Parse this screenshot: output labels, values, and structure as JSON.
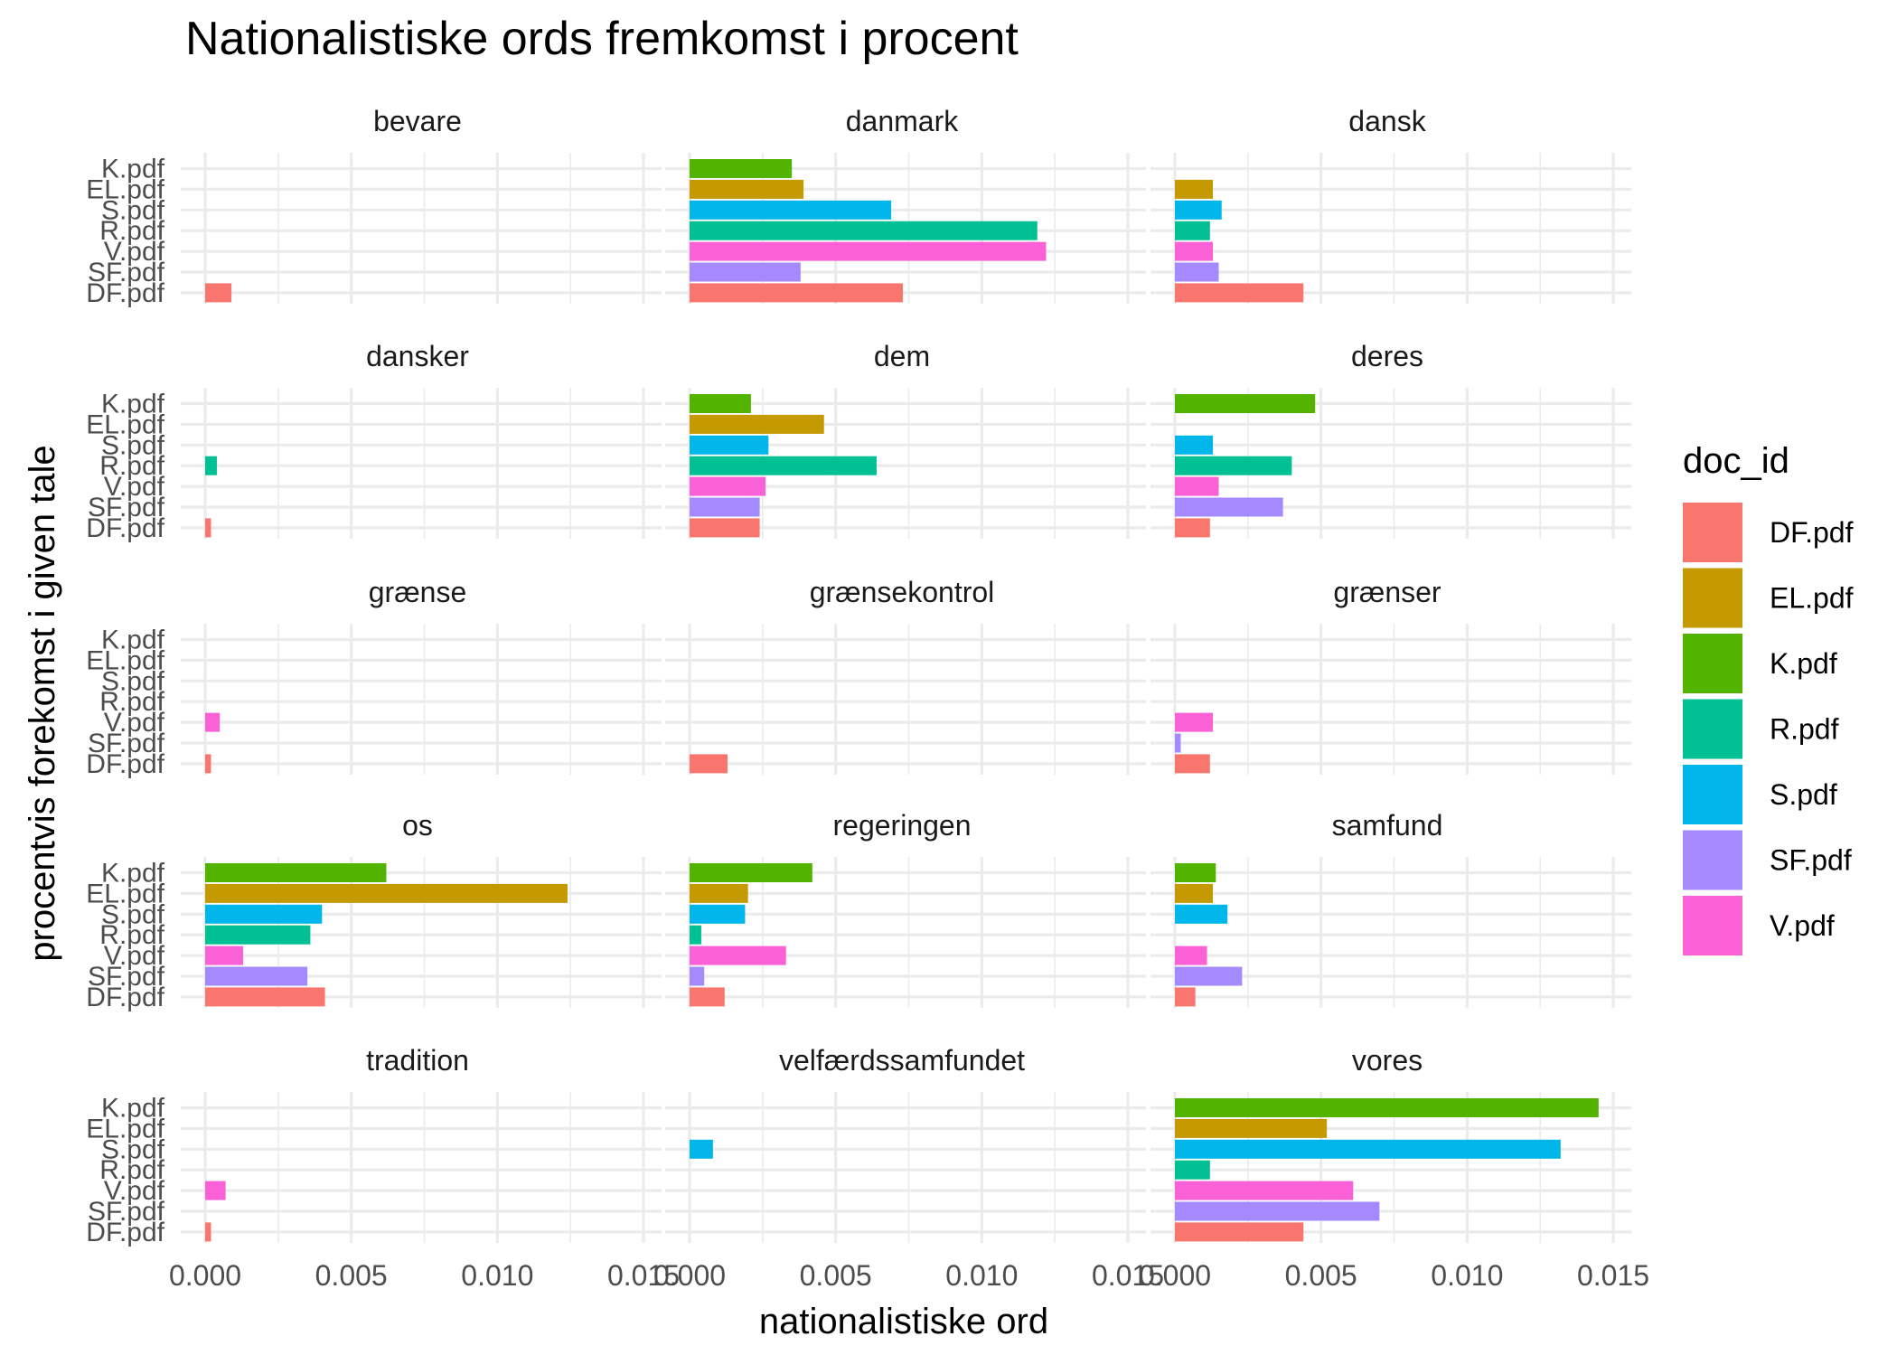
{
  "chart_data": {
    "type": "bar",
    "orientation": "horizontal",
    "facet": "wrap",
    "title": "Nationalistiske ords fremkomst i procent",
    "xlabel": "nationalistiske ord",
    "ylabel": "procentvis forekomst i given tale",
    "xlim": [
      0,
      0.015
    ],
    "x_ticks": [
      0.0,
      0.005,
      0.01,
      0.015
    ],
    "x_tick_labels": [
      "0.000",
      "0.005",
      "0.010",
      "0.015"
    ],
    "grid": true,
    "legend": {
      "title": "doc_id",
      "position": "right"
    },
    "categories": [
      "K.pdf",
      "EL.pdf",
      "S.pdf",
      "R.pdf",
      "V.pdf",
      "SF.pdf",
      "DF.pdf"
    ],
    "legend_order": [
      "DF.pdf",
      "EL.pdf",
      "K.pdf",
      "R.pdf",
      "S.pdf",
      "SF.pdf",
      "V.pdf"
    ],
    "colors": {
      "DF.pdf": "#F8766D",
      "EL.pdf": "#C49A00",
      "K.pdf": "#53B400",
      "R.pdf": "#00C094",
      "S.pdf": "#00B6EB",
      "SF.pdf": "#A58AFF",
      "V.pdf": "#FB61D7"
    },
    "facets": [
      {
        "name": "bevare",
        "values": {
          "DF.pdf": 0.0009
        }
      },
      {
        "name": "danmark",
        "values": {
          "K.pdf": 0.0035,
          "EL.pdf": 0.0039,
          "S.pdf": 0.0069,
          "R.pdf": 0.0119,
          "V.pdf": 0.0122,
          "SF.pdf": 0.0038,
          "DF.pdf": 0.0073
        }
      },
      {
        "name": "dansk",
        "values": {
          "EL.pdf": 0.0013,
          "S.pdf": 0.0016,
          "R.pdf": 0.0012,
          "V.pdf": 0.0013,
          "SF.pdf": 0.0015,
          "DF.pdf": 0.0044
        }
      },
      {
        "name": "dansker",
        "values": {
          "R.pdf": 0.0004,
          "DF.pdf": 0.0002
        }
      },
      {
        "name": "dem",
        "values": {
          "K.pdf": 0.0021,
          "EL.pdf": 0.0046,
          "S.pdf": 0.0027,
          "R.pdf": 0.0064,
          "V.pdf": 0.0026,
          "SF.pdf": 0.0024,
          "DF.pdf": 0.0024
        }
      },
      {
        "name": "deres",
        "values": {
          "K.pdf": 0.0048,
          "S.pdf": 0.0013,
          "R.pdf": 0.004,
          "V.pdf": 0.0015,
          "SF.pdf": 0.0037,
          "DF.pdf": 0.0012
        }
      },
      {
        "name": "grænse",
        "values": {
          "V.pdf": 0.0005,
          "DF.pdf": 0.0002
        }
      },
      {
        "name": "grænsekontrol",
        "values": {
          "DF.pdf": 0.0013
        }
      },
      {
        "name": "grænser",
        "values": {
          "V.pdf": 0.0013,
          "SF.pdf": 0.0002,
          "DF.pdf": 0.0012
        }
      },
      {
        "name": "os",
        "values": {
          "K.pdf": 0.0062,
          "EL.pdf": 0.0124,
          "S.pdf": 0.004,
          "R.pdf": 0.0036,
          "V.pdf": 0.0013,
          "SF.pdf": 0.0035,
          "DF.pdf": 0.0041
        }
      },
      {
        "name": "regeringen",
        "values": {
          "K.pdf": 0.0042,
          "EL.pdf": 0.002,
          "S.pdf": 0.0019,
          "R.pdf": 0.0004,
          "V.pdf": 0.0033,
          "SF.pdf": 0.0005,
          "DF.pdf": 0.0012
        }
      },
      {
        "name": "samfund",
        "values": {
          "K.pdf": 0.0014,
          "EL.pdf": 0.0013,
          "S.pdf": 0.0018,
          "V.pdf": 0.0011,
          "SF.pdf": 0.0023,
          "DF.pdf": 0.0007
        }
      },
      {
        "name": "tradition",
        "values": {
          "V.pdf": 0.0007,
          "DF.pdf": 0.0002
        }
      },
      {
        "name": "velfærdssamfundet",
        "values": {
          "S.pdf": 0.0008
        }
      },
      {
        "name": "vores",
        "values": {
          "K.pdf": 0.0145,
          "EL.pdf": 0.0052,
          "S.pdf": 0.0132,
          "R.pdf": 0.0012,
          "V.pdf": 0.0061,
          "SF.pdf": 0.007,
          "DF.pdf": 0.0044
        }
      }
    ]
  }
}
